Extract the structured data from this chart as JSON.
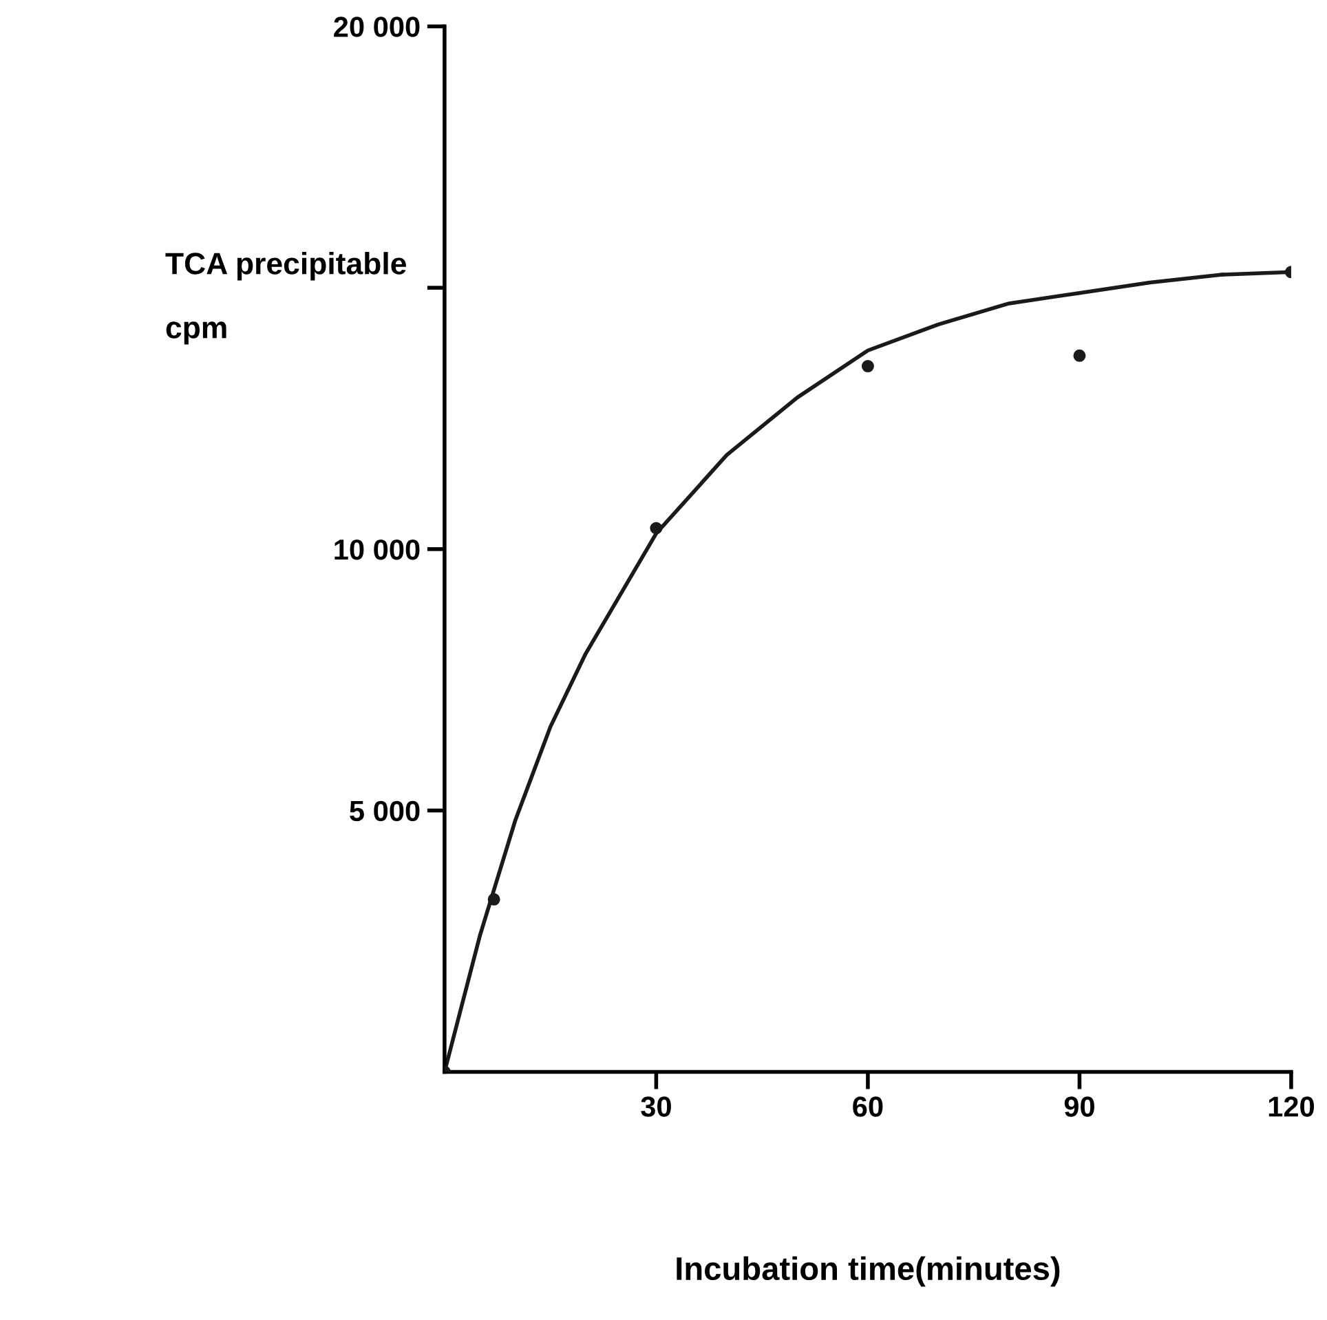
{
  "chart_data": {
    "type": "line",
    "xlabel": "Incubation time(minutes)",
    "ylabel": "TCA precipitable\ncpm",
    "xlim": [
      0,
      120
    ],
    "xticks": [
      30,
      60,
      90,
      120
    ],
    "ylim": [
      0,
      20000
    ],
    "yticks": [
      {
        "value": 5000,
        "label": "5 000"
      },
      {
        "value": 10000,
        "label": "10 000"
      },
      {
        "value": 15000,
        "label": null
      },
      {
        "value": 20000,
        "label": "20 000"
      }
    ],
    "grid": false,
    "series": [
      {
        "type": "scatter",
        "marker": "circle",
        "color": "#1a1a1a",
        "x": [
          0,
          7,
          30,
          60,
          90,
          120
        ],
        "values": [
          0,
          3300,
          10400,
          13500,
          13700,
          15300
        ]
      },
      {
        "color": "#1a1a1a",
        "line_style": "solid",
        "x": [
          0,
          5,
          10,
          15,
          20,
          30,
          40,
          50,
          60,
          70,
          80,
          90,
          100,
          110,
          120
        ],
        "values": [
          0,
          2600,
          4800,
          6600,
          8000,
          10300,
          11800,
          12900,
          13800,
          14300,
          14700,
          14900,
          15100,
          15250,
          15300
        ]
      }
    ]
  }
}
